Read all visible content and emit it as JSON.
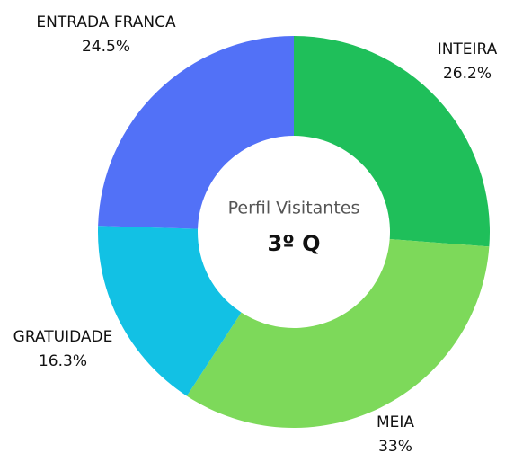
{
  "chart_data": {
    "type": "donut",
    "title": "Perfil Visitantes",
    "subtitle": "3º Q",
    "categories": [
      "INTEIRA",
      "MEIA",
      "GRATUIDADE",
      "ENTRADA FRANCA"
    ],
    "values": [
      26.2,
      33,
      16.3,
      24.5
    ],
    "value_labels": [
      "26.2%",
      "33%",
      "16.3%",
      "24.5%"
    ],
    "colors": [
      "#1fbf5a",
      "#7dd95a",
      "#12c1e4",
      "#5271f7"
    ]
  }
}
